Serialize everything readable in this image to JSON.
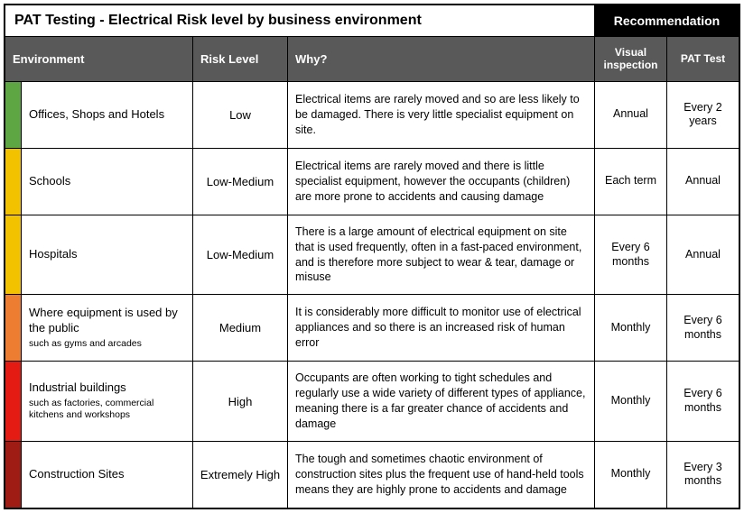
{
  "title": "PAT Testing - Electrical Risk level by business environment",
  "recommendation_label": "Recommendation",
  "headers": {
    "environment": "Environment",
    "risk_level": "Risk Level",
    "why": "Why?",
    "visual_inspection": "Visual inspection",
    "pat_test": "PAT Test"
  },
  "header_bg": "#595959",
  "header_fg": "#ffffff",
  "rec_header_bg": "#000000",
  "rows": [
    {
      "strip_color": "#5ea544",
      "environment": "Offices, Shops and Hotels",
      "environment_sub": "",
      "risk_level": "Low",
      "why": "Electrical items are rarely moved and so are less likely to be damaged. There is very little specialist equipment on site.",
      "visual_inspection": "Annual",
      "pat_test": "Every 2 years"
    },
    {
      "strip_color": "#f2c200",
      "environment": "Schools",
      "environment_sub": "",
      "risk_level": "Low-Medium",
      "why": "Electrical items are rarely moved and there is little specialist equipment, however the occupants (children) are more prone to accidents and causing damage",
      "visual_inspection": "Each term",
      "pat_test": "Annual"
    },
    {
      "strip_color": "#f2c200",
      "environment": "Hospitals",
      "environment_sub": "",
      "risk_level": "Low-Medium",
      "why": "There is a large amount of electrical equipment on site that is used frequently, often in a fast-paced environment, and is therefore more subject to wear & tear, damage or misuse",
      "visual_inspection": "Every 6 months",
      "pat_test": "Annual"
    },
    {
      "strip_color": "#ed7d31",
      "environment": "Where equipment is used by the public",
      "environment_sub": "such as gyms and arcades",
      "risk_level": "Medium",
      "why": "It is considerably more difficult to monitor use of electrical appliances and so there is an increased risk of human error",
      "visual_inspection": "Monthly",
      "pat_test": "Every 6 months"
    },
    {
      "strip_color": "#e31b13",
      "environment": "Industrial buildings",
      "environment_sub": "such as factories, commercial kitchens and workshops",
      "risk_level": "High",
      "why": "Occupants are often working to tight schedules and regularly use a wide variety of different types of appliance, meaning there is a far greater chance of accidents and damage",
      "visual_inspection": "Monthly",
      "pat_test": "Every 6 months"
    },
    {
      "strip_color": "#9e1c14",
      "environment": "Construction Sites",
      "environment_sub": "",
      "risk_level": "Extremely High",
      "why": "The tough and sometimes chaotic environment of construction sites plus the frequent use of hand-held tools means they are highly prone to accidents and damage",
      "visual_inspection": "Monthly",
      "pat_test": "Every 3 months"
    }
  ]
}
